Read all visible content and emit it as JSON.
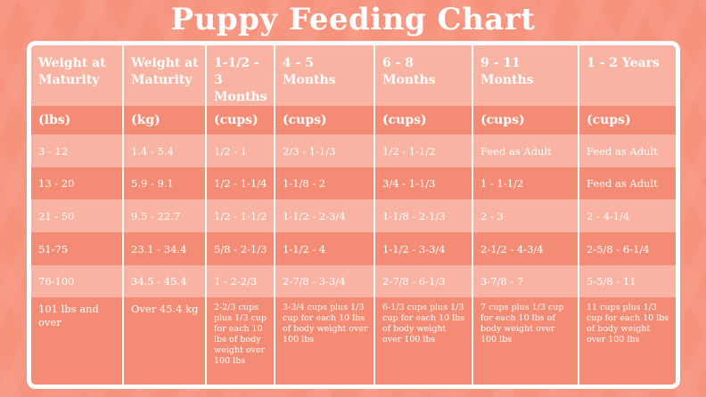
{
  "title": "Puppy Feeding Chart",
  "headers": [
    "Weight at Maturity",
    "Weight at Maturity",
    "1-1/2 - 3 Months",
    "4 - 5 Months",
    "6 - 8 Months",
    "9 - 11 Months",
    "1 - 2 Years"
  ],
  "units": [
    "(lbs)",
    "(kg)",
    "(cups)",
    "(cups)",
    "(cups)",
    "(cups)",
    "(cups)"
  ],
  "rows": [
    [
      "3 - 12",
      "1.4 - 5.4",
      "1/2 - 1",
      "2/3 - 1-1/3",
      "1/2 - 1-1/2",
      "Feed as Adult",
      "Feed as Adult"
    ],
    [
      "13 - 20",
      "5.9 - 9.1",
      "1/2 - 1-1/4",
      "1-1/8 - 2",
      "3/4 - 1-1/3",
      "1 - 1-1/2",
      "Feed as Adult"
    ],
    [
      "21 - 50",
      "9.5 - 22.7",
      "1/2 - 1-1/2",
      "1-1/2 - 2-3/4",
      "1-1/8 - 2-1/3",
      "2 - 3",
      "2 - 4-1/4"
    ],
    [
      "51-75",
      "23.1 - 34.4",
      "5/8 - 2-1/3",
      "1-1/2 - 4",
      "1-1/2 - 3-3/4",
      "2-1/2 - 4-3/4",
      "2-5/8 - 6-1/4"
    ],
    [
      "76-100",
      "34.5 - 45.4",
      "1 - 2-2/3",
      "2-7/8 - 3-3/4",
      "2-7/8 - 6-1/3",
      "3-7/8 - 7",
      "5-5/8 - 11"
    ],
    [
      "101 lbs and over",
      "Over 45.4 kg",
      "2-2/3 cups plus 1/3 cup for each 10 lbs of body weight over 100 lbs",
      "3-3/4 cups plus 1/3 cup for each 10 lbs of body weight over 100 lbs",
      "6-1/3 cups plus 1/3 cup for each 10 lbs of body weight over 100 lbs",
      "7 cups plus 1/3 cup for each 10 lbs of body weight over 100 lbs",
      "11 cups plus 1/3 cup for each 10 lbs of body weight over 100 lbs"
    ]
  ]
}
